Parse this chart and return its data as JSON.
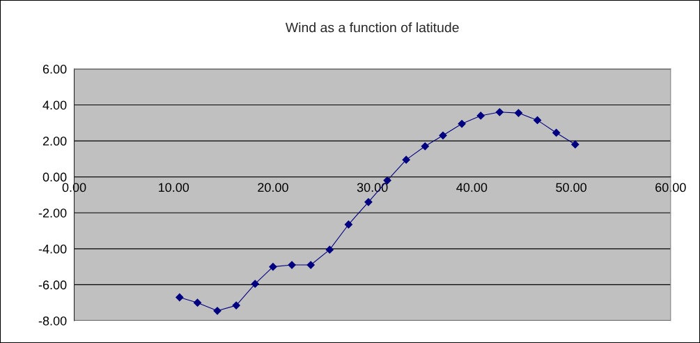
{
  "chart_data": {
    "type": "line",
    "title": "Wind as a function of latitude",
    "x": [
      10.6,
      12.4,
      14.4,
      16.3,
      18.2,
      20.0,
      21.9,
      23.8,
      25.7,
      27.6,
      29.6,
      31.5,
      33.4,
      35.3,
      37.1,
      39.0,
      40.9,
      42.8,
      44.7,
      46.6,
      48.5,
      50.4
    ],
    "series": [
      {
        "color": "#000080",
        "values": [
          -6.7,
          -7.0,
          -7.45,
          -7.15,
          -5.95,
          -5.0,
          -4.9,
          -4.9,
          -4.05,
          -2.65,
          -1.4,
          -0.2,
          0.95,
          1.7,
          2.3,
          2.95,
          3.4,
          3.6,
          3.55,
          3.15,
          2.45,
          1.8
        ]
      }
    ],
    "xlim": [
      0,
      60
    ],
    "ylim": [
      -8,
      6
    ],
    "xticks": [
      {
        "value": 0,
        "label": "0.00"
      },
      {
        "value": 10,
        "label": "10.00"
      },
      {
        "value": 20,
        "label": "20.00"
      },
      {
        "value": 30,
        "label": "30.00"
      },
      {
        "value": 40,
        "label": "40.00"
      },
      {
        "value": 50,
        "label": "50.00"
      },
      {
        "value": 60,
        "label": "60.00"
      }
    ],
    "yticks": [
      {
        "value": -8,
        "label": "-8.00"
      },
      {
        "value": -6,
        "label": "-6.00"
      },
      {
        "value": -4,
        "label": "-4.00"
      },
      {
        "value": -2,
        "label": "-2.00"
      },
      {
        "value": 0,
        "label": "0.00"
      },
      {
        "value": 2,
        "label": "2.00"
      },
      {
        "value": 4,
        "label": "4.00"
      },
      {
        "value": 6,
        "label": "6.00"
      }
    ],
    "grid": "y",
    "marker": "diamond",
    "line_style": "solid"
  }
}
